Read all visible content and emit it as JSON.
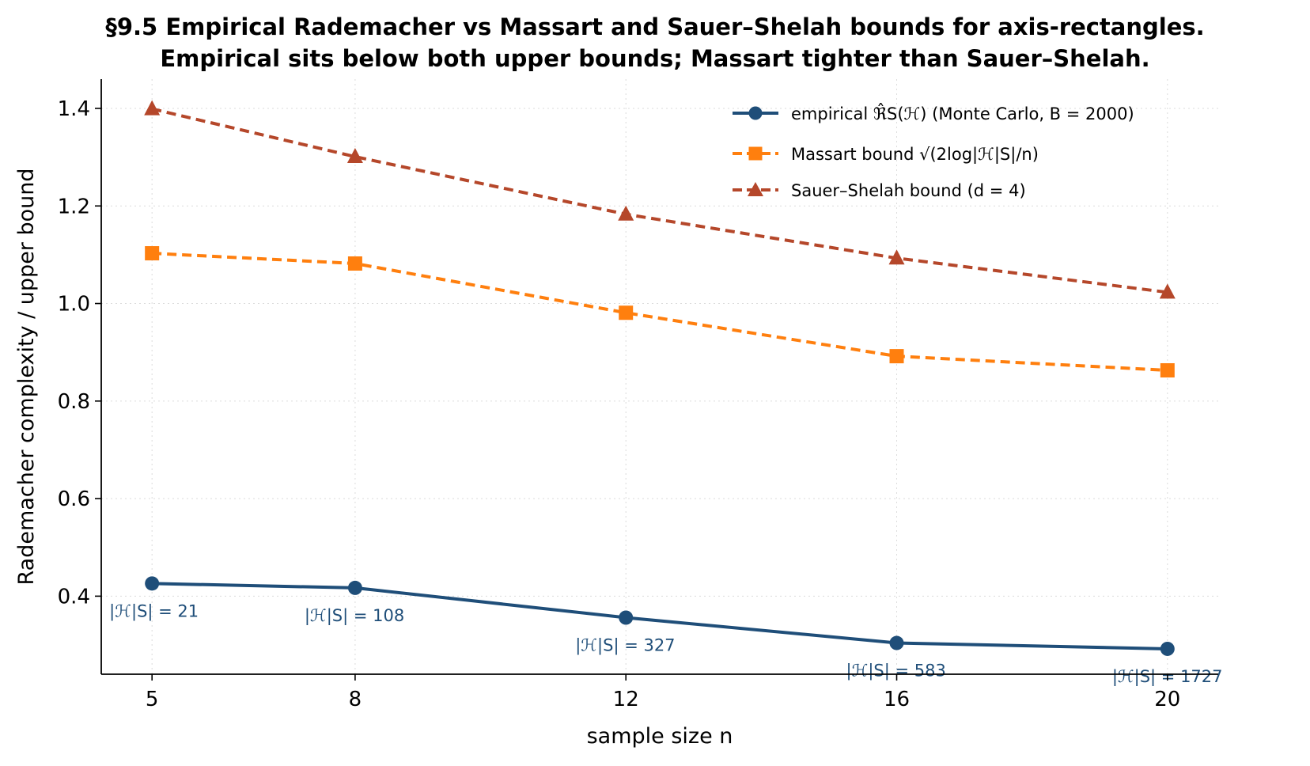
{
  "chart_data": {
    "type": "line",
    "title_lines": [
      "§9.5  Empirical Rademacher vs Massart and Sauer–Shelah bounds for axis-rectangles.",
      "Empirical sits below both upper bounds; Massart tighter than Sauer–Shelah."
    ],
    "xlabel": "sample size n",
    "ylabel": "Rademacher complexity / upper bound",
    "x": [
      5,
      8,
      12,
      16,
      20
    ],
    "x_ticks": [
      "5",
      "8",
      "12",
      "16",
      "20"
    ],
    "y_ticks": [
      "0.4",
      "0.6",
      "0.8",
      "1.0",
      "1.2",
      "1.4"
    ],
    "y_tick_values": [
      0.4,
      0.6,
      0.8,
      1.0,
      1.2,
      1.4
    ],
    "xlim": [
      4.25,
      20.75
    ],
    "ylim": [
      0.24,
      1.46
    ],
    "grid": true,
    "legend_position": "top-right",
    "series": [
      {
        "name": "empirical ℜ̂S(ℋ)  (Monte Carlo, B = 2000)",
        "values": [
          0.426,
          0.417,
          0.356,
          0.304,
          0.292
        ],
        "color": "#1f4e79",
        "marker": "circle",
        "linestyle": "solid"
      },
      {
        "name": "Massart bound √(2log|ℋ|S|/n)",
        "values": [
          1.103,
          1.082,
          0.981,
          0.892,
          0.863
        ],
        "color": "#ff7f0e",
        "marker": "square",
        "linestyle": "dashed"
      },
      {
        "name": "Sauer–Shelah bound  (d = 4)",
        "values": [
          1.399,
          1.301,
          1.183,
          1.093,
          1.023
        ],
        "color": "#b5472a",
        "marker": "triangle",
        "linestyle": "dashed"
      }
    ],
    "annotations": [
      {
        "x": 5,
        "y": 0.426,
        "text": "|ℋ|S| = 21"
      },
      {
        "x": 8,
        "y": 0.417,
        "text": "|ℋ|S| = 108"
      },
      {
        "x": 12,
        "y": 0.356,
        "text": "|ℋ|S| = 327"
      },
      {
        "x": 16,
        "y": 0.304,
        "text": "|ℋ|S| = 583"
      },
      {
        "x": 20,
        "y": 0.292,
        "text": "|ℋ|S| = 1727"
      }
    ]
  }
}
